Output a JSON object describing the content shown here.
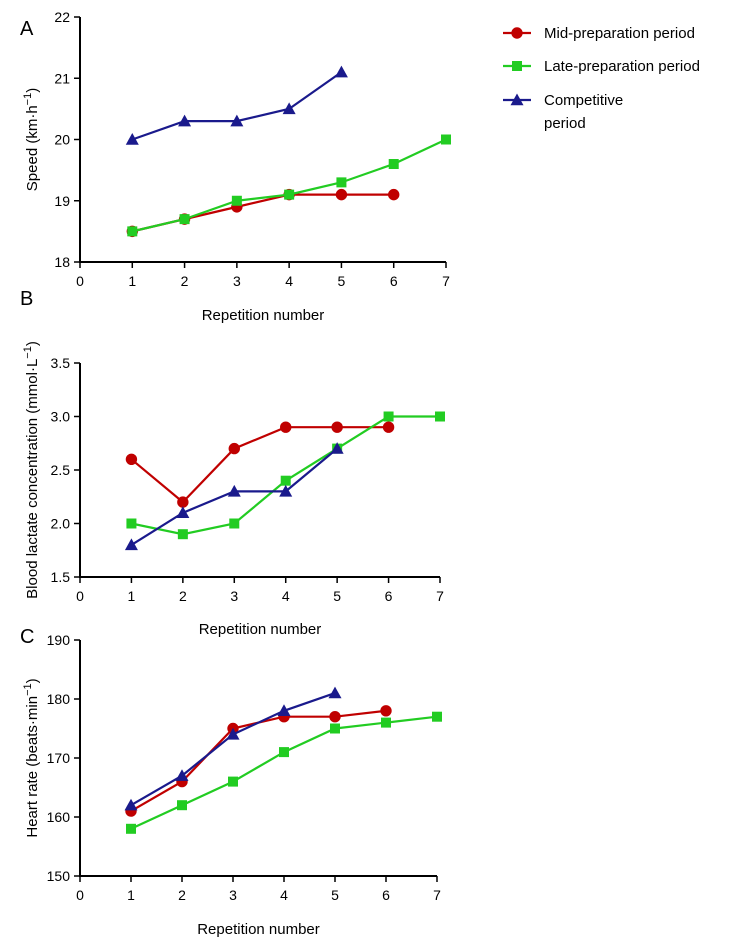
{
  "legend": {
    "entries": [
      {
        "series": "mid",
        "lines": [
          "Mid-preparation period"
        ]
      },
      {
        "series": "late",
        "lines": [
          "Late-preparation period"
        ]
      },
      {
        "series": "comp",
        "lines": [
          "Competitive",
          "period"
        ]
      }
    ]
  },
  "series_styles": {
    "mid": {
      "color": "#c00000",
      "marker": "circle"
    },
    "late": {
      "color": "#22cc22",
      "marker": "square"
    },
    "comp": {
      "color": "#1a1a8c",
      "marker": "triangle"
    }
  },
  "chart_data": [
    {
      "panel": "A",
      "type": "line",
      "xlabel": "Repetition number",
      "ylabel": "Speed (km·h−1)",
      "ylabel_parts": {
        "base": "Speed (km·h",
        "sup": "−1",
        "tail": ")"
      },
      "xlim": [
        0,
        7
      ],
      "ylim": [
        18,
        22
      ],
      "xticks": [
        0,
        1,
        2,
        3,
        4,
        5,
        6,
        7
      ],
      "yticks": [
        18,
        19,
        20,
        21,
        22
      ],
      "series": [
        {
          "name": "Mid-preparation period",
          "key": "mid",
          "x": [
            1,
            2,
            3,
            4,
            5,
            6
          ],
          "y": [
            18.5,
            18.7,
            18.9,
            19.1,
            19.1,
            19.1
          ]
        },
        {
          "name": "Late-preparation period",
          "key": "late",
          "x": [
            1,
            2,
            3,
            4,
            5,
            6,
            7
          ],
          "y": [
            18.5,
            18.7,
            19.0,
            19.1,
            19.3,
            19.6,
            20.0
          ]
        },
        {
          "name": "Competitive period",
          "key": "comp",
          "x": [
            1,
            2,
            3,
            4,
            5
          ],
          "y": [
            20.0,
            20.3,
            20.3,
            20.5,
            21.1
          ]
        }
      ]
    },
    {
      "panel": "B",
      "type": "line",
      "xlabel": "Repetition number",
      "ylabel": "Blood lactate concentration (mmol·L−1)",
      "ylabel_parts": {
        "base": "Blood lactate concentration (mmol·L",
        "sup": "−1",
        "tail": ")"
      },
      "xlim": [
        0,
        7
      ],
      "ylim": [
        1.5,
        3.5
      ],
      "xticks": [
        0,
        1,
        2,
        3,
        4,
        5,
        6,
        7
      ],
      "yticks": [
        "1.5",
        "2.0",
        "2.5",
        "3.0",
        "3.5"
      ],
      "series": [
        {
          "name": "Mid-preparation period",
          "key": "mid",
          "x": [
            1,
            2,
            3,
            4,
            5,
            6
          ],
          "y": [
            2.6,
            2.2,
            2.7,
            2.9,
            2.9,
            2.9
          ]
        },
        {
          "name": "Late-preparation period",
          "key": "late",
          "x": [
            1,
            2,
            3,
            4,
            5,
            6,
            7
          ],
          "y": [
            2.0,
            1.9,
            2.0,
            2.4,
            2.7,
            3.0,
            3.0
          ]
        },
        {
          "name": "Competitive period",
          "key": "comp",
          "x": [
            1,
            2,
            3,
            4,
            5
          ],
          "y": [
            1.8,
            2.1,
            2.3,
            2.3,
            2.7
          ]
        }
      ]
    },
    {
      "panel": "C",
      "type": "line",
      "xlabel": "Repetition number",
      "ylabel": "Heart rate (beats·min−1)",
      "ylabel_parts": {
        "base": "Heart rate (beats·min",
        "sup": "−1",
        "tail": ")"
      },
      "xlim": [
        0,
        7
      ],
      "ylim": [
        150,
        190
      ],
      "xticks": [
        0,
        1,
        2,
        3,
        4,
        5,
        6,
        7
      ],
      "yticks": [
        150,
        160,
        170,
        180,
        190
      ],
      "series": [
        {
          "name": "Mid-preparation period",
          "key": "mid",
          "x": [
            1,
            2,
            3,
            4,
            5,
            6
          ],
          "y": [
            161,
            166,
            175,
            177,
            177,
            178
          ]
        },
        {
          "name": "Late-preparation period",
          "key": "late",
          "x": [
            1,
            2,
            3,
            4,
            5,
            6,
            7
          ],
          "y": [
            158,
            162,
            166,
            171,
            175,
            176,
            177
          ]
        },
        {
          "name": "Competitive period",
          "key": "comp",
          "x": [
            1,
            2,
            3,
            4,
            5
          ],
          "y": [
            162,
            167,
            174,
            178,
            181
          ]
        }
      ]
    }
  ]
}
